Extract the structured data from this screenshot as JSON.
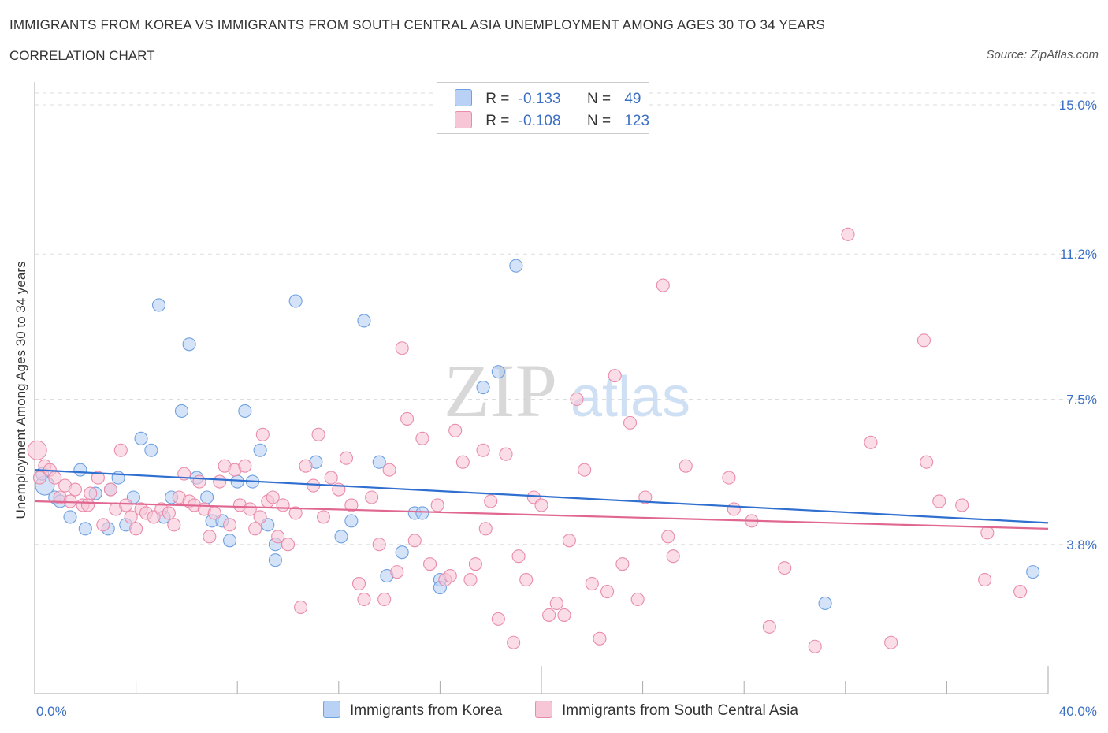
{
  "header": {
    "title": "IMMIGRANTS FROM KOREA VS IMMIGRANTS FROM SOUTH CENTRAL ASIA UNEMPLOYMENT AMONG AGES 30 TO 34 YEARS",
    "subtitle": "CORRELATION CHART",
    "source": "Source: ZipAtlas.com"
  },
  "watermark": {
    "zip": "ZIP",
    "atlas": "atlas"
  },
  "legend": {
    "rows": [
      {
        "r_label": "R =",
        "r_value": "-0.133",
        "n_label": "N =",
        "n_value": "49"
      },
      {
        "r_label": "R =",
        "r_value": "-0.108",
        "n_label": "N =",
        "n_value": "123"
      }
    ]
  },
  "chart_data": {
    "type": "scatter",
    "title": "IMMIGRANTS FROM KOREA VS IMMIGRANTS FROM SOUTH CENTRAL ASIA UNEMPLOYMENT AMONG AGES 30 TO 34 YEARS",
    "xlabel": "",
    "ylabel": "Unemployment Among Ages 30 to 34 years",
    "xlim": [
      0,
      40
    ],
    "ylim": [
      0,
      15
    ],
    "x_tick_labels": [
      "0.0%",
      "40.0%"
    ],
    "y_ticks": [
      {
        "value": 15.0,
        "label": "15.0%"
      },
      {
        "value": 11.2,
        "label": "11.2%"
      },
      {
        "value": 7.5,
        "label": "7.5%"
      },
      {
        "value": 3.8,
        "label": "3.8%"
      }
    ],
    "series": [
      {
        "name": "Immigrants from Korea",
        "color": "#6fa0e0",
        "fill": "#b9d1f5",
        "trend": {
          "x": [
            0,
            40
          ],
          "y": [
            5.7,
            4.35
          ]
        },
        "points": [
          [
            0.4,
            5.3
          ],
          [
            0.8,
            5.0
          ],
          [
            1.0,
            4.9
          ],
          [
            1.4,
            4.5
          ],
          [
            1.8,
            5.7
          ],
          [
            2.0,
            4.2
          ],
          [
            2.4,
            5.1
          ],
          [
            3.0,
            5.2
          ],
          [
            3.3,
            5.5
          ],
          [
            3.6,
            4.3
          ],
          [
            3.9,
            5.0
          ],
          [
            4.2,
            6.5
          ],
          [
            4.6,
            6.2
          ],
          [
            4.9,
            9.9
          ],
          [
            5.1,
            4.5
          ],
          [
            5.4,
            5.0
          ],
          [
            5.8,
            7.2
          ],
          [
            6.1,
            8.9
          ],
          [
            6.4,
            5.5
          ],
          [
            6.8,
            5.0
          ],
          [
            7.0,
            4.4
          ],
          [
            7.4,
            4.4
          ],
          [
            7.7,
            3.9
          ],
          [
            8.0,
            5.4
          ],
          [
            8.3,
            7.2
          ],
          [
            8.6,
            5.4
          ],
          [
            8.9,
            6.2
          ],
          [
            9.2,
            4.3
          ],
          [
            9.5,
            3.8
          ],
          [
            9.5,
            3.4
          ],
          [
            10.3,
            10.0
          ],
          [
            11.1,
            5.9
          ],
          [
            12.1,
            4.0
          ],
          [
            12.5,
            4.4
          ],
          [
            13.0,
            9.5
          ],
          [
            13.6,
            5.9
          ],
          [
            13.9,
            3.0
          ],
          [
            14.5,
            3.6
          ],
          [
            15.0,
            4.6
          ],
          [
            15.3,
            4.6
          ],
          [
            16.0,
            2.9
          ],
          [
            16.0,
            2.7
          ],
          [
            17.7,
            7.8
          ],
          [
            18.3,
            8.2
          ],
          [
            19.0,
            10.9
          ],
          [
            31.2,
            2.3
          ],
          [
            39.4,
            3.1
          ],
          [
            2.9,
            4.2
          ],
          [
            0.3,
            5.6
          ]
        ]
      },
      {
        "name": "Immigrants from South Central Asia",
        "color": "#e98cab",
        "fill": "#f6c6d6",
        "trend": {
          "x": [
            0,
            40
          ],
          "y": [
            4.9,
            4.2
          ]
        },
        "points": [
          [
            0.1,
            6.2
          ],
          [
            0.4,
            5.8
          ],
          [
            0.6,
            5.7
          ],
          [
            0.8,
            5.5
          ],
          [
            1.0,
            5.0
          ],
          [
            1.2,
            5.3
          ],
          [
            1.4,
            4.9
          ],
          [
            1.6,
            5.2
          ],
          [
            1.9,
            4.8
          ],
          [
            2.2,
            5.1
          ],
          [
            2.5,
            5.5
          ],
          [
            2.7,
            4.3
          ],
          [
            3.0,
            5.2
          ],
          [
            3.2,
            4.7
          ],
          [
            3.4,
            6.2
          ],
          [
            3.6,
            4.8
          ],
          [
            3.8,
            4.5
          ],
          [
            4.0,
            4.2
          ],
          [
            4.2,
            4.7
          ],
          [
            4.4,
            4.6
          ],
          [
            4.7,
            4.5
          ],
          [
            5.0,
            4.7
          ],
          [
            5.3,
            4.6
          ],
          [
            5.5,
            4.3
          ],
          [
            5.7,
            5.0
          ],
          [
            5.9,
            5.6
          ],
          [
            6.1,
            4.9
          ],
          [
            6.3,
            4.8
          ],
          [
            6.5,
            5.4
          ],
          [
            6.7,
            4.7
          ],
          [
            6.9,
            4.0
          ],
          [
            7.1,
            4.6
          ],
          [
            7.3,
            5.4
          ],
          [
            7.5,
            5.8
          ],
          [
            7.7,
            4.3
          ],
          [
            7.9,
            5.7
          ],
          [
            8.1,
            4.8
          ],
          [
            8.3,
            5.8
          ],
          [
            8.5,
            4.7
          ],
          [
            8.7,
            4.2
          ],
          [
            8.9,
            4.5
          ],
          [
            9.0,
            6.6
          ],
          [
            9.2,
            4.9
          ],
          [
            9.4,
            5.0
          ],
          [
            9.6,
            4.0
          ],
          [
            9.8,
            4.8
          ],
          [
            10.0,
            3.8
          ],
          [
            10.3,
            4.6
          ],
          [
            10.5,
            2.2
          ],
          [
            10.7,
            5.8
          ],
          [
            11.0,
            5.3
          ],
          [
            11.2,
            6.6
          ],
          [
            11.4,
            4.5
          ],
          [
            11.7,
            5.5
          ],
          [
            12.0,
            5.2
          ],
          [
            12.3,
            6.0
          ],
          [
            12.5,
            4.8
          ],
          [
            12.8,
            2.8
          ],
          [
            13.0,
            2.4
          ],
          [
            13.3,
            5.0
          ],
          [
            13.6,
            3.8
          ],
          [
            13.8,
            2.4
          ],
          [
            14.0,
            5.7
          ],
          [
            14.3,
            3.1
          ],
          [
            14.5,
            8.8
          ],
          [
            14.7,
            7.0
          ],
          [
            15.0,
            3.9
          ],
          [
            15.3,
            6.5
          ],
          [
            15.6,
            3.3
          ],
          [
            15.9,
            4.8
          ],
          [
            16.2,
            2.9
          ],
          [
            16.4,
            3.0
          ],
          [
            16.6,
            6.7
          ],
          [
            16.9,
            5.9
          ],
          [
            17.2,
            2.9
          ],
          [
            17.4,
            3.3
          ],
          [
            17.7,
            6.2
          ],
          [
            18.0,
            4.9
          ],
          [
            18.3,
            1.9
          ],
          [
            18.6,
            6.1
          ],
          [
            18.9,
            1.3
          ],
          [
            19.1,
            3.5
          ],
          [
            19.4,
            2.9
          ],
          [
            19.7,
            5.0
          ],
          [
            20.0,
            4.8
          ],
          [
            20.3,
            2.0
          ],
          [
            20.6,
            2.3
          ],
          [
            20.9,
            2.0
          ],
          [
            21.1,
            3.9
          ],
          [
            21.4,
            7.5
          ],
          [
            21.7,
            5.7
          ],
          [
            22.0,
            2.8
          ],
          [
            22.3,
            1.4
          ],
          [
            22.6,
            2.6
          ],
          [
            22.9,
            8.1
          ],
          [
            23.2,
            3.3
          ],
          [
            23.5,
            6.9
          ],
          [
            23.8,
            2.4
          ],
          [
            24.1,
            5.0
          ],
          [
            24.8,
            10.4
          ],
          [
            25.0,
            4.0
          ],
          [
            25.2,
            3.5
          ],
          [
            25.7,
            5.8
          ],
          [
            27.4,
            5.5
          ],
          [
            27.6,
            4.7
          ],
          [
            28.3,
            4.4
          ],
          [
            29.0,
            1.7
          ],
          [
            29.6,
            3.2
          ],
          [
            30.8,
            1.2
          ],
          [
            32.1,
            11.7
          ],
          [
            33.0,
            6.4
          ],
          [
            33.8,
            1.3
          ],
          [
            35.1,
            9.0
          ],
          [
            35.2,
            5.9
          ],
          [
            35.7,
            4.9
          ],
          [
            36.6,
            4.8
          ],
          [
            37.5,
            2.9
          ],
          [
            37.6,
            4.1
          ],
          [
            38.9,
            2.6
          ],
          [
            17.8,
            4.2
          ],
          [
            0.2,
            5.5
          ],
          [
            2.1,
            4.8
          ]
        ]
      }
    ]
  }
}
